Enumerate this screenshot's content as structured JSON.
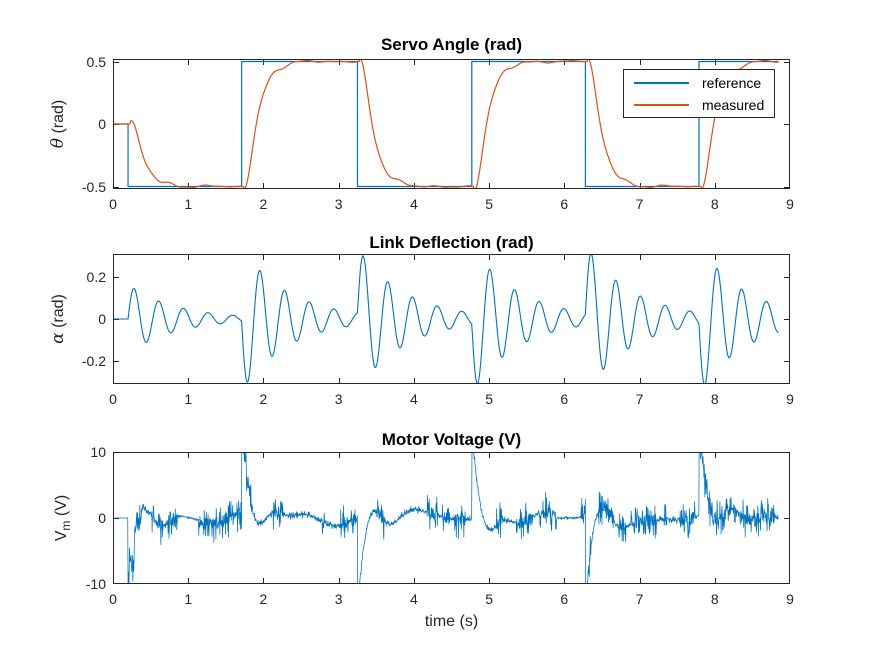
{
  "styles": {
    "background": "#ffffff",
    "axis_color": "#262626",
    "text_color": "#262626",
    "title_color": "#000000",
    "series_blue": "#0072BD",
    "series_orange": "#D95319"
  },
  "xlabel": "time (s)",
  "legend": {
    "items": [
      {
        "label": "reference",
        "color": "#0072BD"
      },
      {
        "label": "measured",
        "color": "#D95319"
      }
    ]
  },
  "chart_data": [
    {
      "type": "line",
      "title": "Servo Angle (rad)",
      "ylabel_parts": [
        {
          "text": "θ",
          "style": "greek"
        },
        {
          "text": " (rad)",
          "style": "normal"
        }
      ],
      "xlim": [
        0,
        9
      ],
      "ylim": [
        -0.52,
        0.52
      ],
      "xticks": [
        0,
        1,
        2,
        3,
        4,
        5,
        6,
        7,
        8,
        9
      ],
      "xtick_labels": [
        "0",
        "1",
        "2",
        "3",
        "4",
        "5",
        "6",
        "7",
        "8",
        "9"
      ],
      "yticks": [
        0.5,
        0,
        -0.5
      ],
      "ytick_labels": [
        "0.5",
        "0",
        "-0.5"
      ],
      "legend_location": "northeast",
      "series": [
        {
          "name": "reference",
          "color": "#0072BD",
          "type": "piecewise",
          "line_width": 1.2,
          "points": [
            [
              0,
              0
            ],
            [
              0.2,
              0
            ],
            [
              0.2,
              -0.5
            ],
            [
              1.71,
              -0.5
            ],
            [
              1.71,
              0.5
            ],
            [
              3.25,
              0.5
            ],
            [
              3.25,
              -0.5
            ],
            [
              4.77,
              -0.5
            ],
            [
              4.77,
              0.5
            ],
            [
              6.28,
              0.5
            ],
            [
              6.28,
              -0.5
            ],
            [
              7.79,
              -0.5
            ],
            [
              7.79,
              0.5
            ],
            [
              8.85,
              0.5
            ]
          ]
        },
        {
          "name": "measured",
          "color": "#D95319",
          "type": "model-servo",
          "line_width": 1.2,
          "params": {
            "tau": 0.1,
            "delay": 0.03,
            "wiggle": 0.03,
            "t_end": 8.85,
            "dt": 0.008,
            "steps": [
              {
                "t": 0.2,
                "from": 0,
                "to": -0.5
              },
              {
                "t": 1.71,
                "from": -0.5,
                "to": 0.5
              },
              {
                "t": 3.25,
                "from": 0.5,
                "to": -0.5
              },
              {
                "t": 4.77,
                "from": -0.5,
                "to": 0.5
              },
              {
                "t": 6.28,
                "from": 0.5,
                "to": -0.5
              },
              {
                "t": 7.79,
                "from": -0.5,
                "to": 0.5
              }
            ]
          }
        }
      ]
    },
    {
      "type": "line",
      "title": "Link Deflection (rad)",
      "ylabel_parts": [
        {
          "text": "α",
          "style": "greek"
        },
        {
          "text": " (rad)",
          "style": "normal"
        }
      ],
      "xlim": [
        0,
        9
      ],
      "ylim": [
        -0.31,
        0.31
      ],
      "xticks": [
        0,
        1,
        2,
        3,
        4,
        5,
        6,
        7,
        8,
        9
      ],
      "xtick_labels": [
        "0",
        "1",
        "2",
        "3",
        "4",
        "5",
        "6",
        "7",
        "8",
        "9"
      ],
      "yticks": [
        0.2,
        0,
        -0.2
      ],
      "ytick_labels": [
        "0.2",
        "0",
        "-0.2"
      ],
      "series": [
        {
          "name": "alpha",
          "color": "#0072BD",
          "type": "model-deflection",
          "line_width": 1.1,
          "params": {
            "freq_hz": 3.05,
            "decay": 1.6,
            "amp_per_unit_step": 0.33,
            "t_end": 8.85,
            "dt": 0.008,
            "steps": [
              {
                "t": 0.2,
                "delta": -0.5
              },
              {
                "t": 1.71,
                "delta": 1.0
              },
              {
                "t": 3.25,
                "delta": -1.0
              },
              {
                "t": 4.77,
                "delta": 1.0
              },
              {
                "t": 6.28,
                "delta": -1.0
              },
              {
                "t": 7.79,
                "delta": 1.0
              }
            ]
          }
        }
      ]
    },
    {
      "type": "line",
      "title": "Motor Voltage (V)",
      "ylabel_parts": [
        {
          "text": "V",
          "style": "normal"
        },
        {
          "text": "m",
          "style": "sub"
        },
        {
          "text": " (V)",
          "style": "normal"
        }
      ],
      "xlabel": "time (s)",
      "xlim": [
        0,
        9
      ],
      "ylim": [
        -10,
        10
      ],
      "xticks": [
        0,
        1,
        2,
        3,
        4,
        5,
        6,
        7,
        8,
        9
      ],
      "xtick_labels": [
        "0",
        "1",
        "2",
        "3",
        "4",
        "5",
        "6",
        "7",
        "8",
        "9"
      ],
      "yticks": [
        10,
        0,
        -10
      ],
      "ytick_labels": [
        "10",
        "0",
        "-10"
      ],
      "series": [
        {
          "name": "Vm",
          "color": "#0072BD",
          "type": "model-voltage",
          "line_width": 0.75,
          "params": {
            "seed": 11,
            "dt": 0.004,
            "t_end": 8.85,
            "noise_band": 1.7,
            "toggle_prob": 0.03,
            "spike_tau": 0.07,
            "recoil_amp": 3.8,
            "recoil_tau": 0.28,
            "recoil_freq": 2.1,
            "quiet_zones": [
              [
                0.86,
                1.14
              ],
              [
                5.9,
                6.22
              ]
            ],
            "steps": [
              {
                "t": 0.2,
                "sign": -1,
                "ring": 7
              },
              {
                "t": 1.71,
                "sign": 1,
                "ring": 0
              },
              {
                "t": 3.25,
                "sign": -1,
                "ring": 0
              },
              {
                "t": 4.77,
                "sign": 1,
                "ring": 0
              },
              {
                "t": 6.28,
                "sign": -1,
                "ring": 0
              },
              {
                "t": 7.79,
                "sign": 1,
                "ring": 0
              }
            ]
          }
        }
      ]
    }
  ]
}
